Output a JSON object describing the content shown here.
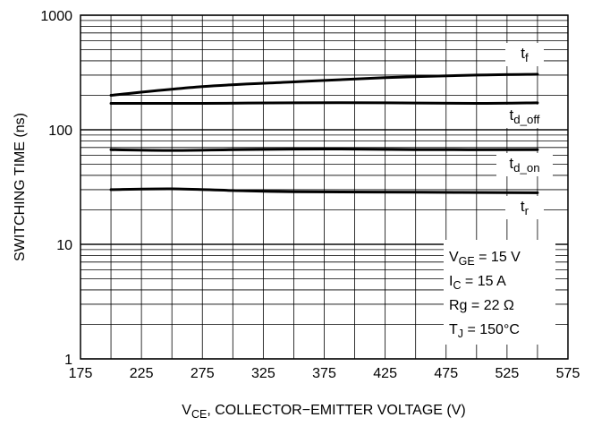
{
  "chart_data": {
    "type": "line",
    "y_scale": "log",
    "grid": true,
    "xlim": [
      175,
      575
    ],
    "ylim": [
      1,
      1000
    ],
    "x_ticks": [
      "175",
      "225",
      "275",
      "325",
      "375",
      "425",
      "475",
      "525",
      "575"
    ],
    "y_ticks": [
      "1",
      "10",
      "100",
      "1000"
    ],
    "x_ticks_values": [
      175,
      225,
      275,
      325,
      375,
      425,
      475,
      525,
      575
    ],
    "y_ticks_values": [
      1,
      10,
      100,
      1000
    ],
    "xlabel": {
      "prefix": "V",
      "sub": "CE",
      "rest": ", COLLECTOR−EMITTER VOLTAGE (V)"
    },
    "ylabel": "SWITCHING TIME (ns)",
    "series": [
      {
        "label": {
          "base": "t",
          "sub": "f"
        },
        "x": [
          200,
          275,
          350,
          425,
          500,
          550
        ],
        "y": [
          200,
          238,
          262,
          285,
          300,
          305
        ]
      },
      {
        "label": {
          "base": "t",
          "sub": "d_off"
        },
        "x": [
          200,
          275,
          350,
          425,
          500,
          550
        ],
        "y": [
          170,
          170,
          172,
          172,
          170,
          172
        ]
      },
      {
        "label": {
          "base": "t",
          "sub": "d_on"
        },
        "x": [
          200,
          250,
          300,
          375,
          450,
          550
        ],
        "y": [
          67,
          66,
          67,
          68,
          67,
          67
        ]
      },
      {
        "label": {
          "base": "t",
          "sub": "r"
        },
        "x": [
          200,
          250,
          300,
          350,
          450,
          550
        ],
        "y": [
          30,
          30.5,
          29.5,
          28.8,
          28.5,
          28.2
        ]
      }
    ],
    "annotation_lines": [
      {
        "base": "V",
        "sub": "GE",
        "rest": " = 15 V"
      },
      {
        "base": "I",
        "sub": "C",
        "rest": " = 15 A"
      },
      {
        "base": "Rg = 22 Ω",
        "sub": "",
        "rest": ""
      },
      {
        "base": "T",
        "sub": "J",
        "rest": " = 150°C"
      }
    ]
  }
}
